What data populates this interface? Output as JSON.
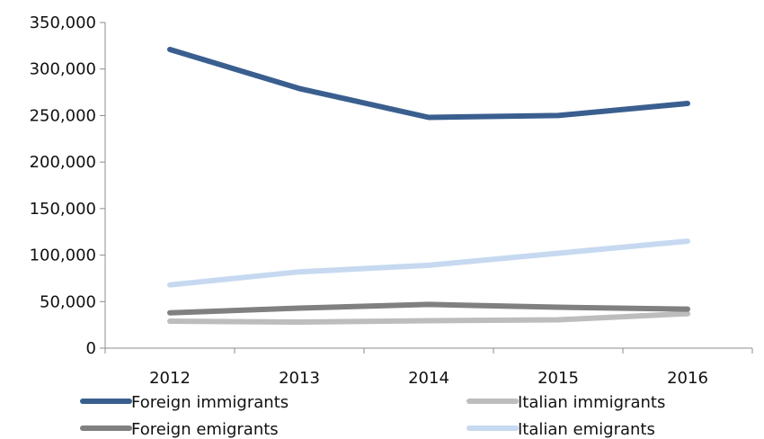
{
  "chart_data": {
    "type": "line",
    "title": "",
    "xlabel": "",
    "ylabel": "",
    "categories": [
      "2012",
      "2013",
      "2014",
      "2015",
      "2016"
    ],
    "ylim": [
      0,
      350000
    ],
    "yticks": [
      0,
      50000,
      100000,
      150000,
      200000,
      250000,
      300000,
      350000
    ],
    "ytick_labels": [
      "0",
      "50,000",
      "100,000",
      "150,000",
      "200,000",
      "250,000",
      "300,000",
      "350,000"
    ],
    "grid": false,
    "legend_position": "bottom",
    "series": [
      {
        "name": "Foreign immigrants",
        "color": "#3a5f8f",
        "values": [
          321000,
          279000,
          248000,
          250000,
          263000
        ]
      },
      {
        "name": "Italian immigrants",
        "color": "#bdbdbd",
        "values": [
          29000,
          28000,
          29500,
          30500,
          37000
        ]
      },
      {
        "name": "Foreign emigrants",
        "color": "#808080",
        "values": [
          38000,
          43000,
          47000,
          44000,
          42000
        ]
      },
      {
        "name": "Italian emigrants",
        "color": "#c6d9f0",
        "values": [
          68000,
          82000,
          89000,
          102000,
          115000
        ]
      }
    ]
  }
}
